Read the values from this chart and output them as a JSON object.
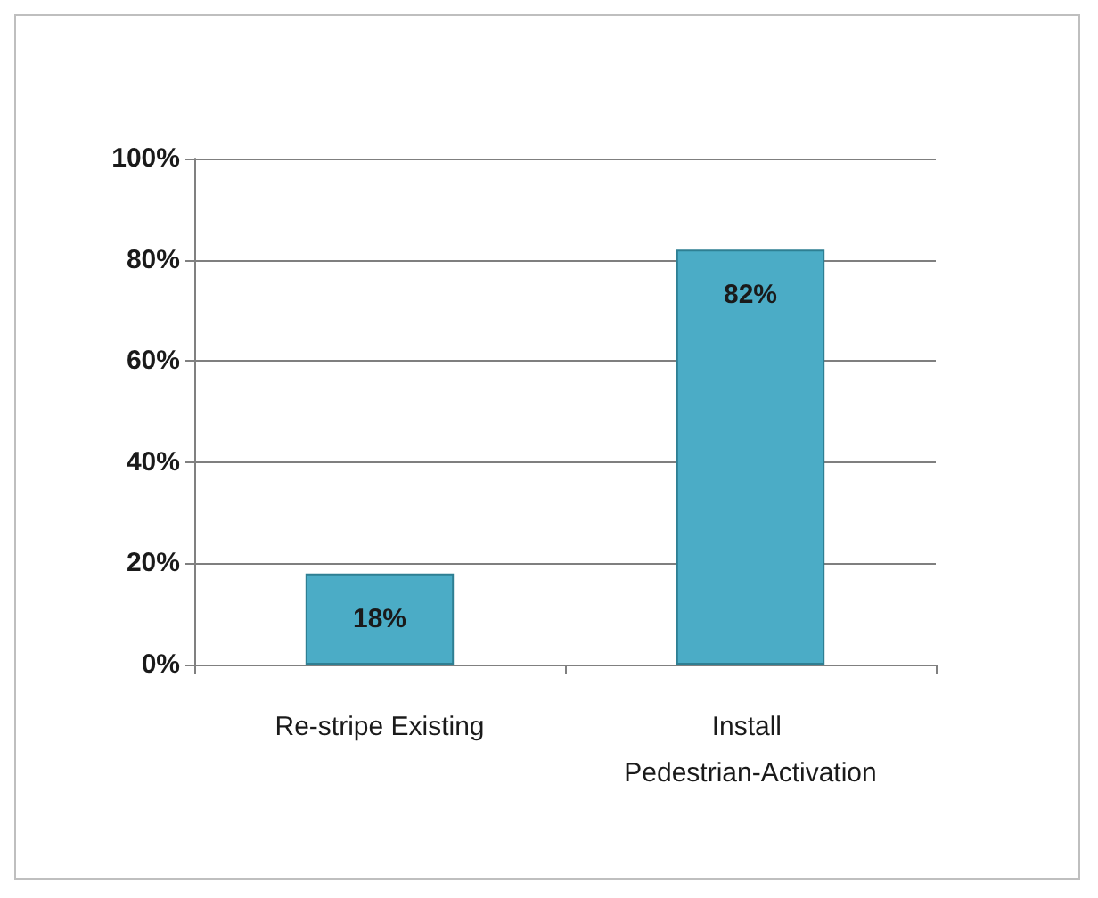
{
  "chart_data": {
    "type": "bar",
    "categories": [
      "Re-stripe Existing",
      "Install Pedestrian-Activation"
    ],
    "values": [
      18,
      82
    ],
    "color": "#4bacc6",
    "value_labels": [
      "18%",
      "82%"
    ],
    "ylim": [
      0,
      100
    ],
    "yticks": [
      {
        "value": 0,
        "label": "0%"
      },
      {
        "value": 20,
        "label": "20%"
      },
      {
        "value": 40,
        "label": "40%"
      },
      {
        "value": 60,
        "label": "60%"
      },
      {
        "value": 80,
        "label": "80%"
      },
      {
        "value": 100,
        "label": "100%"
      }
    ],
    "grid": "y"
  }
}
